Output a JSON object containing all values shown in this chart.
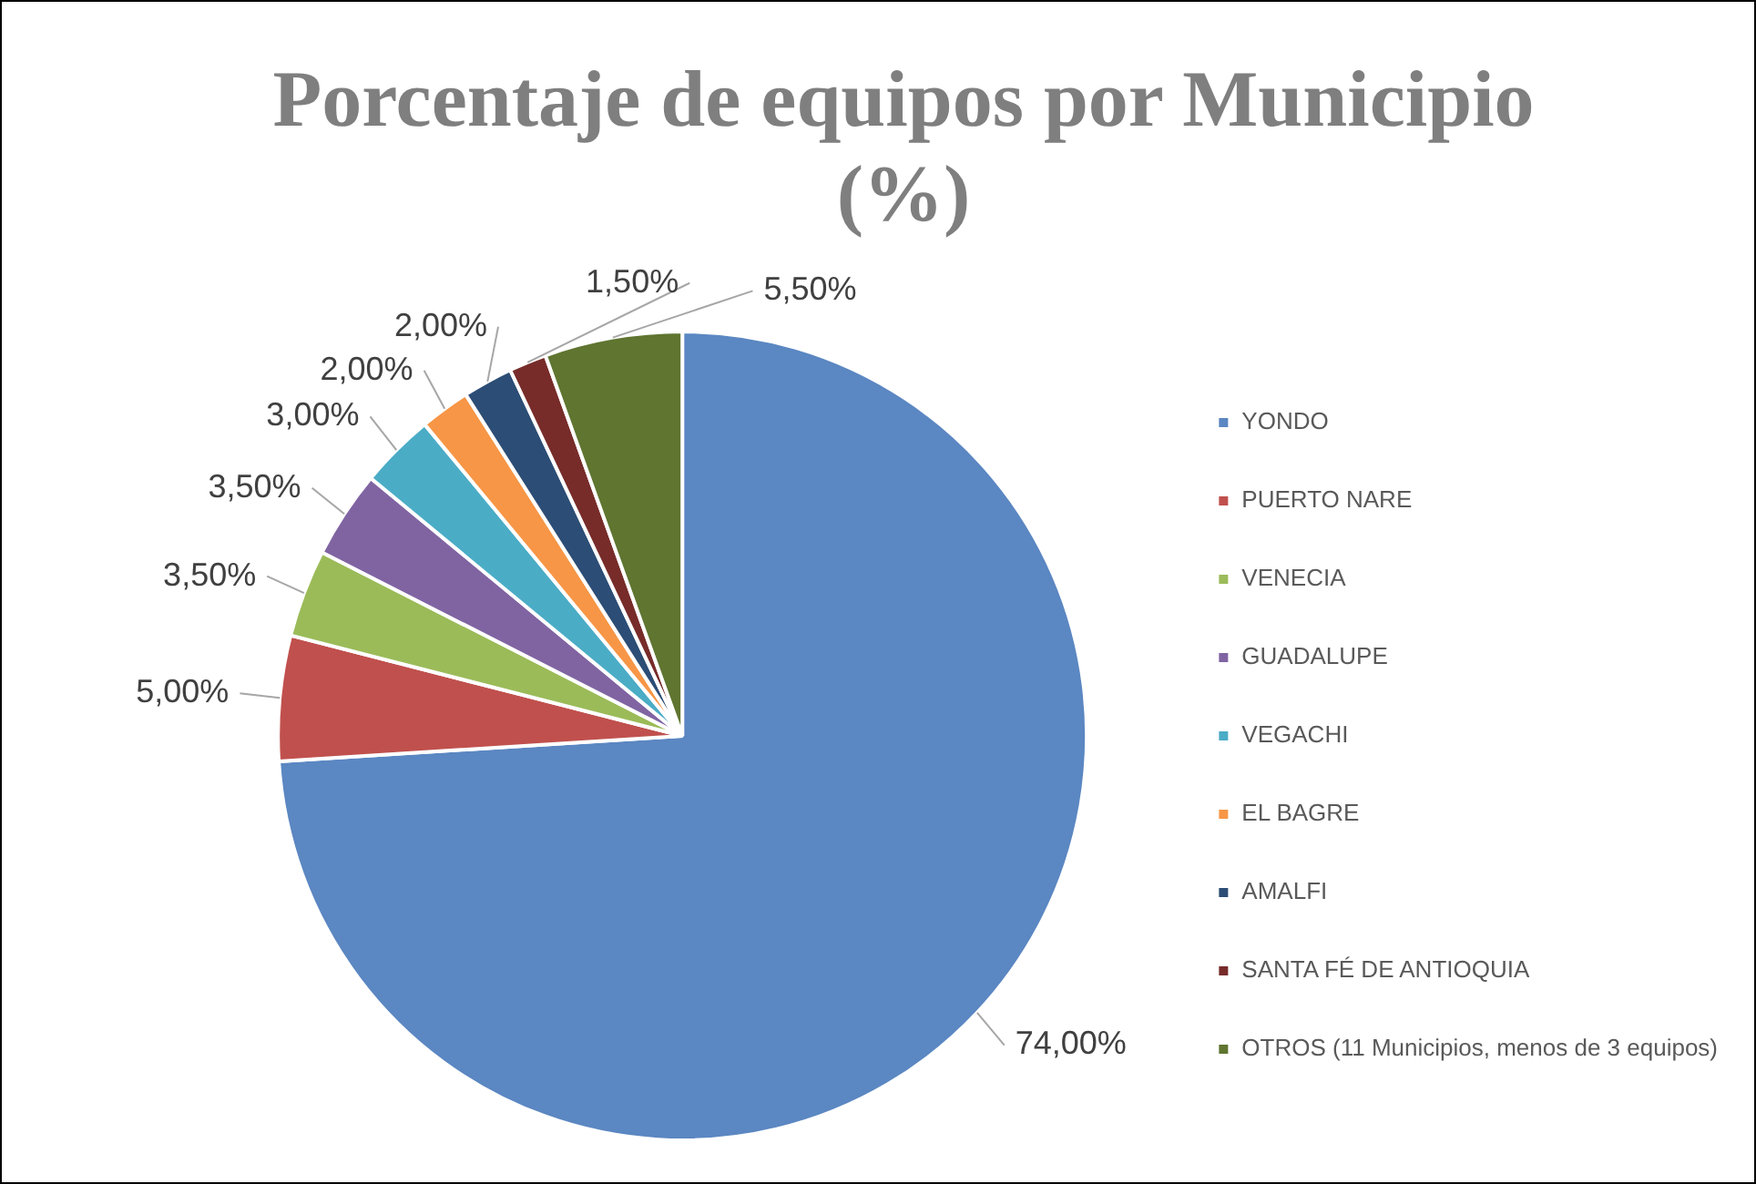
{
  "chart_data": {
    "type": "pie",
    "title": "Porcentaje de equipos por Municipio (%)",
    "categories": [
      "YONDO",
      "PUERTO NARE",
      "VENECIA",
      "GUADALUPE",
      "VEGACHI",
      "EL BAGRE",
      "AMALFI",
      "SANTA FÉ DE ANTIOQUIA",
      "OTROS (11 Municipios, menos de 3 equipos)"
    ],
    "values": [
      74,
      5,
      3.5,
      3.5,
      3,
      2,
      2,
      1.5,
      5.5
    ],
    "colors": [
      "#5b87c2",
      "#c0504d",
      "#9bbb59",
      "#8064a2",
      "#4bacc6",
      "#f79646",
      "#2c4d75",
      "#772c2a",
      "#5f7530"
    ],
    "value_labels": [
      "74,00%",
      "5,00%",
      "3,50%",
      "3,50%",
      "3,00%",
      "2,00%",
      "2,00%",
      "1,50%",
      "5,50%"
    ],
    "legend": "right"
  }
}
